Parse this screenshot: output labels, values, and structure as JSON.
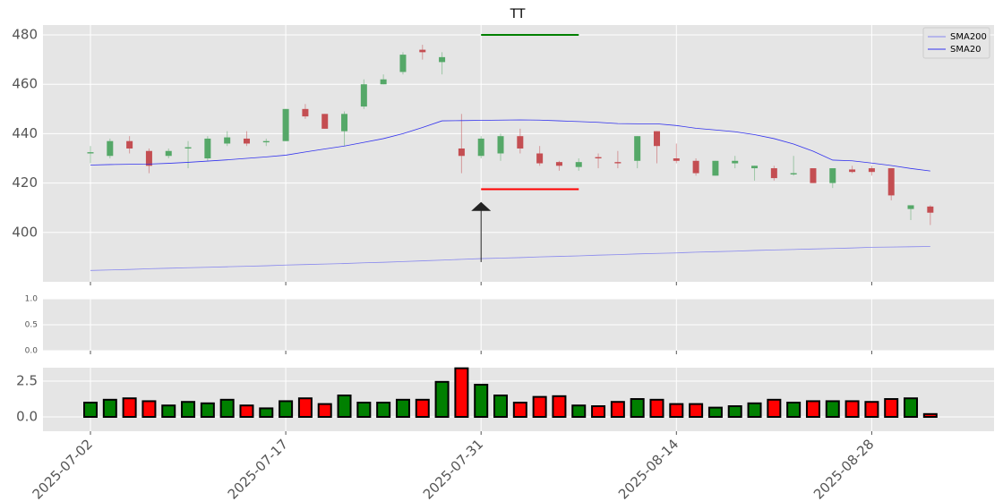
{
  "chart_data": [
    {
      "type": "candlestick",
      "title": "TT",
      "open": [
        432,
        431,
        437,
        433,
        431,
        434,
        430,
        436,
        438,
        436.5,
        437,
        450,
        448,
        441,
        451,
        460,
        465,
        474,
        469,
        434,
        431,
        432,
        439,
        432,
        428.5,
        426.5,
        430.5,
        428.5,
        429,
        441,
        430,
        429,
        423,
        428,
        426,
        426,
        423.5,
        426,
        420,
        425.5,
        426,
        426,
        409.5,
        410.5
      ],
      "high": [
        435,
        438,
        439,
        434,
        434,
        437,
        439,
        441,
        441,
        438,
        450,
        452,
        448,
        449,
        462,
        464,
        473,
        476,
        473,
        448,
        439,
        440,
        442,
        435,
        429,
        430,
        432,
        433,
        439,
        441,
        436,
        430,
        429,
        431,
        427,
        427,
        431,
        426,
        426,
        427,
        427,
        426,
        411,
        411
      ],
      "low": [
        428,
        430,
        432,
        424,
        430,
        426,
        429,
        435,
        435,
        435,
        437,
        446,
        442,
        435,
        450,
        460,
        464,
        470,
        464,
        424,
        430,
        429,
        432,
        427,
        425,
        425,
        426,
        426,
        426,
        428,
        428,
        423,
        423,
        426,
        421,
        421,
        423,
        420,
        418,
        424,
        423,
        413,
        405,
        403
      ],
      "close": [
        432.5,
        437,
        434,
        427,
        433,
        434.5,
        438,
        438.5,
        436,
        437,
        450,
        447,
        442,
        448,
        460,
        462,
        472,
        473,
        471,
        431,
        438,
        439,
        434,
        428,
        427,
        428.5,
        430,
        428,
        439,
        435,
        429,
        424,
        429,
        429,
        427,
        422,
        424,
        420,
        426,
        424.5,
        424.5,
        415,
        411,
        408
      ],
      "up_color": "#55a868",
      "down_color": "#c44e52",
      "series": [
        {
          "name": "SMA200",
          "color": "#8888ee",
          "values": [
            384.6,
            384.8,
            385.0,
            385.3,
            385.5,
            385.7,
            385.9,
            386.1,
            386.3,
            386.5,
            386.8,
            387.0,
            387.2,
            387.4,
            387.7,
            387.9,
            388.2,
            388.5,
            388.8,
            389.1,
            389.4,
            389.6,
            389.8,
            390.1,
            390.3,
            390.5,
            390.8,
            391.0,
            391.3,
            391.5,
            391.7,
            392.0,
            392.2,
            392.4,
            392.7,
            392.9,
            393.1,
            393.3,
            393.5,
            393.7,
            394.0,
            394.1,
            394.2,
            394.3
          ]
        },
        {
          "name": "SMA20",
          "color": "#3333ee",
          "values": [
            427.3,
            427.5,
            427.6,
            427.7,
            428,
            428.4,
            428.9,
            429.4,
            430,
            430.6,
            431.3,
            432.6,
            433.8,
            435,
            436.5,
            438,
            440,
            442.5,
            445.2,
            445.3,
            445.4,
            445.5,
            445.6,
            445.5,
            445.2,
            444.9,
            444.6,
            444.1,
            444,
            444,
            443.3,
            442.2,
            441.5,
            440.8,
            439.6,
            438,
            435.8,
            432.9,
            429.3,
            429,
            428.1,
            427.1,
            425.9,
            424.9
          ]
        }
      ],
      "hlines": [
        {
          "value": 480,
          "start": 20,
          "end": 25,
          "color": "#008000"
        },
        {
          "value": 417.5,
          "start": 20,
          "end": 25,
          "color": "#ff0000"
        }
      ],
      "arrow": {
        "at": 20,
        "start": 388,
        "end": 412
      },
      "ylim": [
        380,
        484
      ],
      "yticks": [
        400,
        420,
        440,
        460,
        480
      ],
      "xticks": [
        0,
        10,
        20,
        30,
        40
      ],
      "grid": true,
      "legend": "upper right"
    },
    {
      "type": "line",
      "series": [],
      "ylim": [
        0,
        1
      ],
      "yticks": [
        {
          "value": 0,
          "label": "0.0"
        },
        0.5,
        {
          "value": 1,
          "label": "1.0"
        }
      ],
      "xticks": [
        0,
        10,
        20,
        30,
        40
      ],
      "grid": true
    },
    {
      "type": "bar",
      "categories": [
        "2025-07-02",
        null,
        null,
        null,
        null,
        null,
        null,
        null,
        null,
        null,
        "2025-07-17",
        null,
        null,
        null,
        null,
        null,
        null,
        null,
        null,
        null,
        "2025-07-31",
        null,
        null,
        null,
        null,
        null,
        null,
        null,
        null,
        null,
        "2025-08-14",
        null,
        null,
        null,
        null,
        null,
        null,
        null,
        null,
        null,
        "2025-08-28",
        null,
        null,
        null
      ],
      "values": [
        1.0,
        1.2,
        1.3,
        1.1,
        0.8,
        1.05,
        0.95,
        1.2,
        0.8,
        0.6,
        1.1,
        1.3,
        0.9,
        1.5,
        1.0,
        1.0,
        1.2,
        1.2,
        2.45,
        3.4,
        2.25,
        1.5,
        1.0,
        1.4,
        1.45,
        0.8,
        0.75,
        1.05,
        1.25,
        1.2,
        0.9,
        0.9,
        0.65,
        0.75,
        0.95,
        1.2,
        1.0,
        1.1,
        1.1,
        1.1,
        1.05,
        1.25,
        1.3,
        0.2
      ],
      "up_color": "#008000",
      "down_color": "#ff0000",
      "ylim": [
        -1,
        3.44
      ],
      "yticks": [
        {
          "value": 0,
          "label": "0.0"
        },
        2.5
      ],
      "xticks": [
        0,
        10,
        20,
        30,
        40
      ],
      "grid": true
    }
  ]
}
